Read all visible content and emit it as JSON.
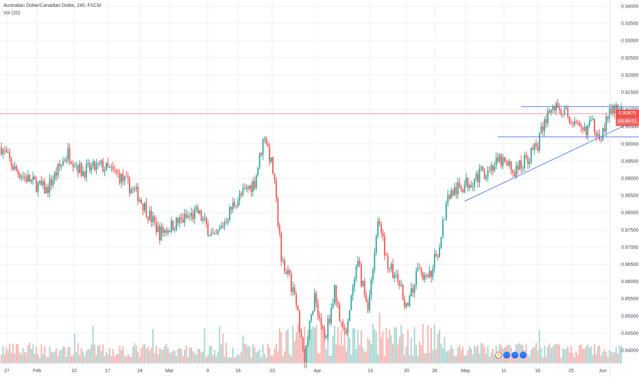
{
  "symbol": {
    "title": "Australian Dollar/Canadian Dollar, 240, FXCM",
    "volume_label": "Vol (20)"
  },
  "price_tags": {
    "last_price": "0.90875",
    "countdown": "03:49:51"
  },
  "colors": {
    "up": "#26a69a",
    "down": "#ef5350",
    "vol_up": "#a9d7d2",
    "vol_down": "#f7b5b3",
    "trendline": "#5b7fe0",
    "price_line": "#ef5350",
    "grid": "#eef0f3",
    "axis_text": "#434651"
  },
  "events": {
    "labels": [
      "⚡",
      "🌐",
      "🌐",
      "🌐"
    ]
  },
  "chart_data": {
    "type": "candlestick",
    "title": "Australian Dollar/Canadian Dollar, 240, FXCM",
    "y_axis": {
      "ticks": [
        "0.94000",
        "0.93500",
        "0.93000",
        "0.92500",
        "0.92000",
        "0.91500",
        "0.91000",
        "0.90500",
        "0.90000",
        "0.89500",
        "0.89000",
        "0.88500",
        "0.88000",
        "0.87500",
        "0.87000",
        "0.86500",
        "0.86000",
        "0.85500",
        "0.85000",
        "0.84500",
        "0.84000"
      ],
      "range": [
        0.8375,
        0.9405
      ],
      "position": "right"
    },
    "x_axis": {
      "labels": [
        "27",
        "Feb",
        "10",
        "17",
        "24",
        "Mar",
        "9",
        "16",
        "23",
        "Apr",
        "13",
        "20",
        "26",
        "May",
        "11",
        "18",
        "25",
        "Jun"
      ]
    },
    "last_price": 0.90875,
    "grid": true,
    "anchors": [
      {
        "t": 0,
        "p": 0.899
      },
      {
        "t": 8,
        "p": 0.8925
      },
      {
        "t": 18,
        "p": 0.889
      },
      {
        "t": 27,
        "p": 0.8865
      },
      {
        "t": 40,
        "p": 0.8975
      },
      {
        "t": 48,
        "p": 0.892
      },
      {
        "t": 60,
        "p": 0.8935
      },
      {
        "t": 70,
        "p": 0.891
      },
      {
        "t": 82,
        "p": 0.885
      },
      {
        "t": 95,
        "p": 0.874
      },
      {
        "t": 105,
        "p": 0.877
      },
      {
        "t": 118,
        "p": 0.88
      },
      {
        "t": 128,
        "p": 0.872
      },
      {
        "t": 140,
        "p": 0.883
      },
      {
        "t": 152,
        "p": 0.889
      },
      {
        "t": 158,
        "p": 0.903
      },
      {
        "t": 163,
        "p": 0.892
      },
      {
        "t": 168,
        "p": 0.868
      },
      {
        "t": 176,
        "p": 0.856
      },
      {
        "t": 182,
        "p": 0.838
      },
      {
        "t": 188,
        "p": 0.856
      },
      {
        "t": 194,
        "p": 0.843
      },
      {
        "t": 200,
        "p": 0.857
      },
      {
        "t": 206,
        "p": 0.844
      },
      {
        "t": 214,
        "p": 0.865
      },
      {
        "t": 220,
        "p": 0.852
      },
      {
        "t": 226,
        "p": 0.878
      },
      {
        "t": 232,
        "p": 0.865
      },
      {
        "t": 238,
        "p": 0.86
      },
      {
        "t": 244,
        "p": 0.852
      },
      {
        "t": 250,
        "p": 0.864
      },
      {
        "t": 256,
        "p": 0.86
      },
      {
        "t": 262,
        "p": 0.869
      },
      {
        "t": 268,
        "p": 0.885
      },
      {
        "t": 278,
        "p": 0.888
      },
      {
        "t": 290,
        "p": 0.892
      },
      {
        "t": 300,
        "p": 0.895
      },
      {
        "t": 308,
        "p": 0.892
      },
      {
        "t": 316,
        "p": 0.896
      },
      {
        "t": 322,
        "p": 0.9
      },
      {
        "t": 328,
        "p": 0.909
      },
      {
        "t": 334,
        "p": 0.911
      },
      {
        "t": 342,
        "p": 0.907
      },
      {
        "t": 348,
        "p": 0.903
      },
      {
        "t": 354,
        "p": 0.906
      },
      {
        "t": 360,
        "p": 0.9025
      },
      {
        "t": 366,
        "p": 0.91
      },
      {
        "t": 372,
        "p": 0.9087
      }
    ],
    "annotations": {
      "upper_horizontal": {
        "t1": 312,
        "t2": 398,
        "p": 0.9108
      },
      "lower_horizontal": {
        "t1": 298,
        "t2": 440,
        "p": 0.902
      },
      "ascending_trendline": {
        "t1": 278,
        "p1": 0.8833,
        "t2": 398,
        "p2": 0.9108
      }
    }
  }
}
